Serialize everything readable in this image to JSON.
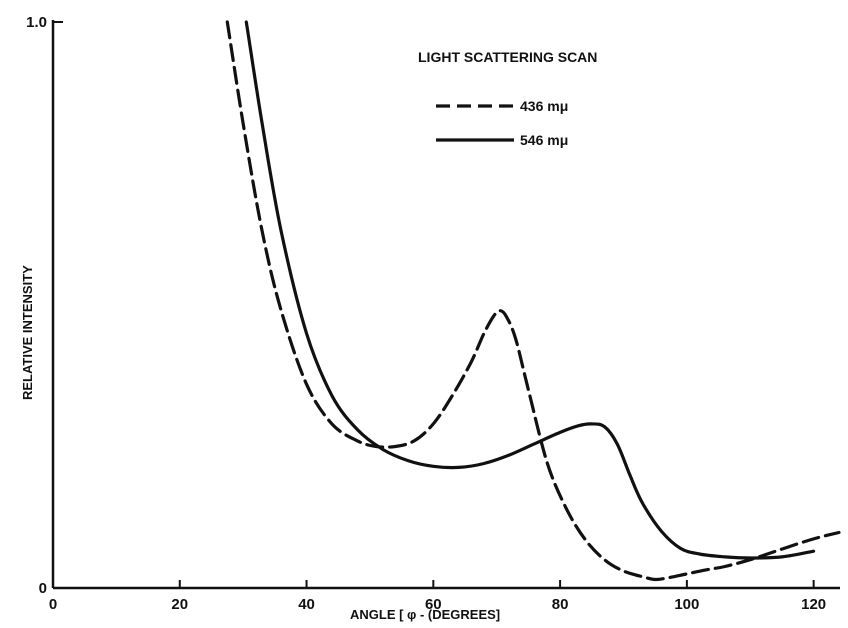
{
  "chart_data": {
    "type": "line",
    "title": "LIGHT SCATTERING SCAN",
    "xlabel": "ANGLE [ φ - (DEGREES]",
    "ylabel": "RELATIVE INTENSITY",
    "xlim": [
      0,
      124
    ],
    "ylim": [
      0,
      1.0
    ],
    "x_ticks": [
      0,
      20,
      40,
      60,
      80,
      100,
      120
    ],
    "y_tick_labels": [
      "0",
      "1.0"
    ],
    "grid": false,
    "legend_position": "top-right",
    "series": [
      {
        "name": "436 mμ",
        "style": "dashed",
        "x": [
          27.5,
          30,
          33,
          36,
          40,
          44,
          48,
          51,
          54,
          57,
          60,
          63,
          66,
          68,
          69.5,
          70.5,
          71.5,
          73,
          75,
          78,
          81,
          84,
          87,
          90,
          93,
          95,
          97,
          100,
          103,
          106,
          110,
          114,
          118,
          121,
          124
        ],
        "y": [
          1.0,
          0.82,
          0.63,
          0.49,
          0.36,
          0.29,
          0.26,
          0.25,
          0.25,
          0.26,
          0.29,
          0.34,
          0.4,
          0.45,
          0.48,
          0.49,
          0.48,
          0.44,
          0.35,
          0.22,
          0.14,
          0.085,
          0.05,
          0.03,
          0.02,
          0.015,
          0.018,
          0.025,
          0.032,
          0.038,
          0.05,
          0.065,
          0.08,
          0.09,
          0.098
        ]
      },
      {
        "name": "546 mμ",
        "style": "solid",
        "x": [
          30.5,
          33,
          36,
          40,
          44,
          48,
          52,
          56,
          60,
          64,
          68,
          72,
          76,
          80,
          83,
          85,
          87,
          89,
          91,
          93,
          96,
          99,
          102,
          106,
          110,
          115,
          120
        ],
        "y": [
          1.0,
          0.82,
          0.63,
          0.45,
          0.34,
          0.28,
          0.245,
          0.225,
          0.215,
          0.213,
          0.22,
          0.235,
          0.255,
          0.275,
          0.287,
          0.29,
          0.285,
          0.255,
          0.2,
          0.15,
          0.1,
          0.07,
          0.06,
          0.055,
          0.053,
          0.055,
          0.065
        ]
      }
    ]
  }
}
